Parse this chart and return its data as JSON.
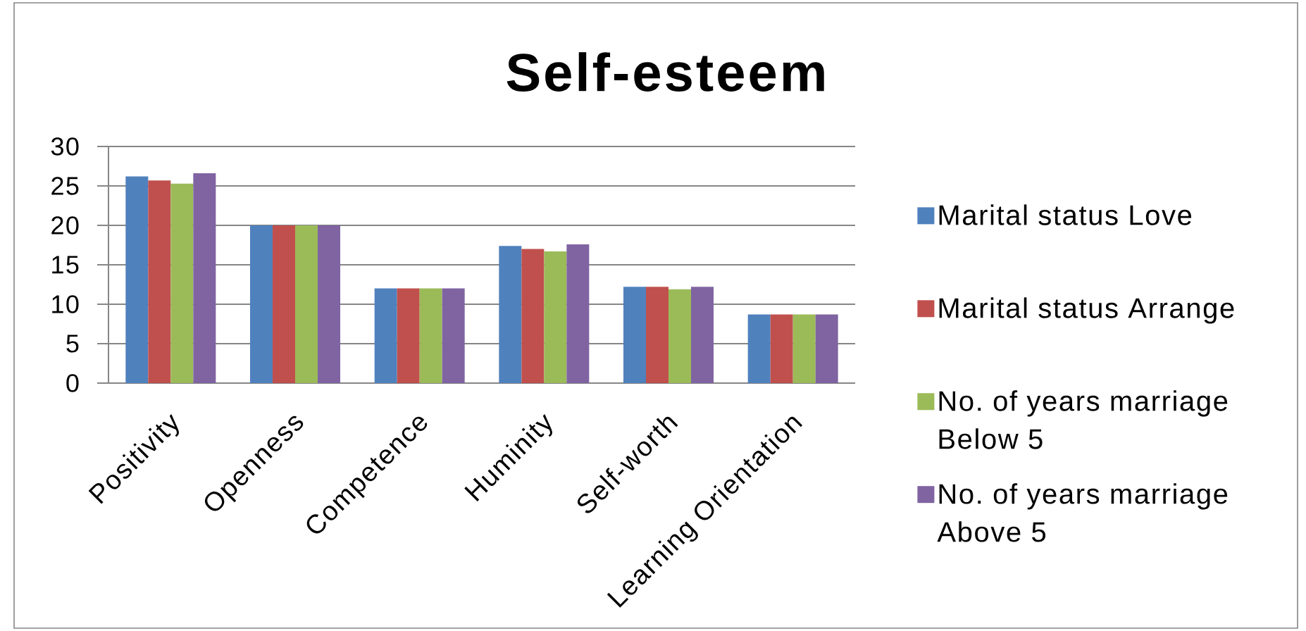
{
  "chart_data": {
    "type": "bar",
    "title": "Self-esteem",
    "categories": [
      "Positivity",
      "Openness",
      "Competence",
      "Huminity",
      "Self-worth",
      "Learning Orientation"
    ],
    "series": [
      {
        "name": "Marital status Love",
        "color": "#4f81bd",
        "values": [
          26.2,
          20,
          12,
          17.4,
          12.2,
          8.7
        ]
      },
      {
        "name": "Marital status Arrange",
        "color": "#c0504d",
        "values": [
          25.7,
          20,
          12,
          17.0,
          12.2,
          8.7
        ]
      },
      {
        "name": "No. of years marriage Below 5",
        "color": "#9bbb59",
        "values": [
          25.3,
          20,
          12,
          16.7,
          11.9,
          8.7
        ]
      },
      {
        "name": "No. of years marriage Above 5",
        "color": "#8064a2",
        "values": [
          26.6,
          20,
          12,
          17.6,
          12.2,
          8.7
        ]
      }
    ],
    "ylim": [
      0,
      30
    ],
    "yticks": [
      0,
      5,
      10,
      15,
      20,
      25,
      30
    ],
    "grid": "y",
    "legend": "right"
  }
}
